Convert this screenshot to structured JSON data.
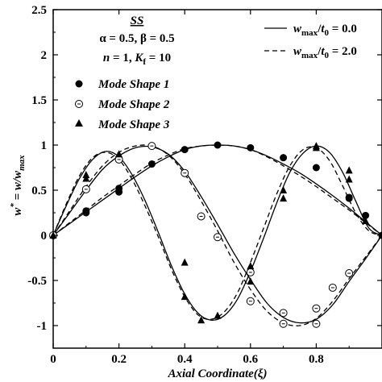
{
  "chart_data": {
    "type": "line",
    "xlabel": "Axial Coordinate(ξ)",
    "ylabel": "w* = w/w_max",
    "xlim": [
      0,
      1
    ],
    "ylim": [
      -1.25,
      2.5
    ],
    "xticks": [
      0,
      0.2,
      0.4,
      0.6,
      0.8
    ],
    "xtick_labels": [
      "0",
      "0.2",
      "0.4",
      "0.6",
      "0.8"
    ],
    "yticks": [
      -1,
      -0.5,
      0,
      0.5,
      1,
      1.5,
      2,
      2.5
    ],
    "ytick_labels": [
      "-1",
      "-0.5",
      "0",
      "0.5",
      "1",
      "1.5",
      "2",
      "2.5"
    ],
    "grid": false,
    "annotation": {
      "title": "SS",
      "line1": "α = 0.5, β = 0.5",
      "line2": "n = 1, K_f = 10"
    },
    "line_legend": {
      "position": "top-right",
      "entries": [
        {
          "label": "w_max/t_0 = 0.0",
          "style": "solid"
        },
        {
          "label": "w_max/t_0 = 2.0",
          "style": "dashed"
        }
      ]
    },
    "marker_legend": {
      "position": "upper-left",
      "entries": [
        {
          "label": "Mode Shape 1",
          "marker": "filled-circle"
        },
        {
          "label": "Mode Shape 2",
          "marker": "open-circle-dot"
        },
        {
          "label": "Mode Shape 3",
          "marker": "filled-triangle"
        }
      ]
    },
    "series": [
      {
        "label": "Mode Shape 1",
        "marker": "filled-circle",
        "solid": {
          "x": [
            0,
            0.05,
            0.1,
            0.15,
            0.2,
            0.25,
            0.3,
            0.35,
            0.4,
            0.45,
            0.5,
            0.55,
            0.6,
            0.65,
            0.7,
            0.75,
            0.8,
            0.85,
            0.9,
            0.95,
            1.0
          ],
          "y": [
            0,
            0.13,
            0.26,
            0.39,
            0.52,
            0.65,
            0.77,
            0.87,
            0.95,
            0.99,
            1.0,
            0.99,
            0.95,
            0.88,
            0.79,
            0.69,
            0.57,
            0.44,
            0.3,
            0.15,
            0
          ]
        },
        "dashed": {
          "x": [
            0,
            0.05,
            0.1,
            0.15,
            0.2,
            0.25,
            0.3,
            0.35,
            0.4,
            0.45,
            0.5,
            0.55,
            0.6,
            0.65,
            0.7,
            0.75,
            0.8,
            0.85,
            0.9,
            0.95,
            1.0
          ],
          "y": [
            0,
            0.14,
            0.28,
            0.42,
            0.55,
            0.68,
            0.8,
            0.89,
            0.96,
            0.99,
            1.0,
            0.99,
            0.95,
            0.87,
            0.77,
            0.66,
            0.54,
            0.41,
            0.28,
            0.14,
            0
          ]
        },
        "points": {
          "x": [
            0,
            0.1,
            0.2,
            0.3,
            0.4,
            0.5,
            0.6,
            0.7,
            0.8,
            0.9,
            1.0
          ],
          "y": [
            0,
            0.27,
            0.52,
            0.79,
            0.95,
            1.0,
            0.97,
            0.86,
            0.75,
            0.41,
            0
          ]
        },
        "points_alt": {
          "x": [
            0.1,
            0.2,
            0.9,
            0.95
          ],
          "y": [
            0.25,
            0.48,
            0.42,
            0.22
          ]
        }
      },
      {
        "label": "Mode Shape 2",
        "marker": "open-circle-dot",
        "solid": {
          "x": [
            0,
            0.05,
            0.1,
            0.15,
            0.2,
            0.25,
            0.3,
            0.35,
            0.4,
            0.45,
            0.5,
            0.55,
            0.6,
            0.65,
            0.7,
            0.75,
            0.8,
            0.85,
            0.9,
            0.95,
            1.0
          ],
          "y": [
            0,
            0.25,
            0.5,
            0.73,
            0.88,
            0.97,
            0.98,
            0.9,
            0.71,
            0.43,
            0.12,
            -0.2,
            -0.49,
            -0.75,
            -0.91,
            -0.97,
            -0.93,
            -0.77,
            -0.51,
            -0.26,
            0
          ]
        },
        "dashed": {
          "x": [
            0,
            0.05,
            0.1,
            0.15,
            0.2,
            0.25,
            0.3,
            0.35,
            0.4,
            0.45,
            0.5,
            0.55,
            0.6,
            0.65,
            0.7,
            0.75,
            0.8,
            0.85,
            0.9,
            0.95,
            1.0
          ],
          "y": [
            0,
            0.27,
            0.54,
            0.77,
            0.92,
            0.99,
            0.99,
            0.89,
            0.68,
            0.38,
            0.05,
            -0.3,
            -0.6,
            -0.84,
            -0.97,
            -1.0,
            -0.92,
            -0.73,
            -0.48,
            -0.24,
            0
          ]
        },
        "points": {
          "x": [
            0,
            0.1,
            0.2,
            0.3,
            0.4,
            0.45,
            0.5,
            0.6,
            0.7,
            0.8,
            0.85,
            0.9
          ],
          "y": [
            0,
            0.51,
            0.84,
            0.99,
            0.69,
            0.21,
            -0.02,
            -0.41,
            -0.86,
            -0.81,
            -0.58,
            -0.42
          ]
        },
        "points_alt": {
          "x": [
            0.6,
            0.7,
            0.8
          ],
          "y": [
            -0.73,
            -0.98,
            -0.98
          ]
        }
      },
      {
        "label": "Mode Shape 3",
        "marker": "filled-triangle",
        "solid": {
          "x": [
            0,
            0.04,
            0.08,
            0.12,
            0.16,
            0.2,
            0.24,
            0.28,
            0.32,
            0.36,
            0.4,
            0.44,
            0.48,
            0.52,
            0.56,
            0.6,
            0.64,
            0.68,
            0.72,
            0.76,
            0.8,
            0.84,
            0.88,
            0.92,
            0.96,
            1.0
          ],
          "y": [
            0,
            0.33,
            0.63,
            0.84,
            0.93,
            0.87,
            0.67,
            0.38,
            0.03,
            -0.34,
            -0.65,
            -0.86,
            -0.94,
            -0.89,
            -0.71,
            -0.4,
            -0.03,
            0.36,
            0.7,
            0.91,
            0.99,
            0.92,
            0.7,
            0.38,
            0.08,
            0
          ]
        },
        "dashed": {
          "x": [
            0,
            0.04,
            0.08,
            0.12,
            0.16,
            0.2,
            0.24,
            0.28,
            0.32,
            0.36,
            0.4,
            0.44,
            0.48,
            0.52,
            0.56,
            0.6,
            0.64,
            0.68,
            0.72,
            0.76,
            0.8,
            0.84,
            0.88,
            0.92,
            0.96,
            1.0
          ],
          "y": [
            0,
            0.35,
            0.66,
            0.86,
            0.92,
            0.84,
            0.62,
            0.32,
            -0.02,
            -0.38,
            -0.68,
            -0.88,
            -0.93,
            -0.85,
            -0.64,
            -0.3,
            0.08,
            0.46,
            0.77,
            0.95,
            0.97,
            0.83,
            0.55,
            0.25,
            0.05,
            0
          ]
        },
        "points": {
          "x": [
            0,
            0.1,
            0.2,
            0.4,
            0.5,
            0.6,
            0.7,
            0.8,
            0.9,
            0.95,
            1.0
          ],
          "y": [
            0,
            0.67,
            0.9,
            -0.68,
            -0.89,
            -0.51,
            0.41,
            0.99,
            0.72,
            0.16,
            0
          ]
        },
        "points_alt": {
          "x": [
            0.1,
            0.4,
            0.45,
            0.6,
            0.7,
            0.8,
            0.9
          ],
          "y": [
            0.63,
            -0.3,
            -0.94,
            -0.34,
            0.5,
            0.97,
            0.62
          ]
        }
      }
    ]
  }
}
